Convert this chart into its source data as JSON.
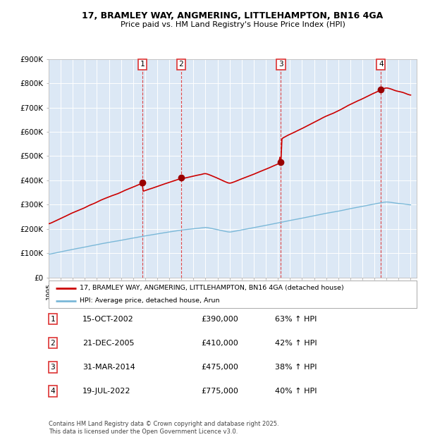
{
  "title1": "17, BRAMLEY WAY, ANGMERING, LITTLEHAMPTON, BN16 4GA",
  "title2": "Price paid vs. HM Land Registry's House Price Index (HPI)",
  "background_color": "#ffffff",
  "plot_bg_color": "#dce8f5",
  "grid_color": "#ffffff",
  "red_line_color": "#cc0000",
  "blue_line_color": "#7ab8d8",
  "sale_marker_color": "#990000",
  "vline_color": "#dd3333",
  "ylim": [
    0,
    900000
  ],
  "yticks": [
    0,
    100000,
    200000,
    300000,
    400000,
    500000,
    600000,
    700000,
    800000,
    900000
  ],
  "ytick_labels": [
    "£0",
    "£100K",
    "£200K",
    "£300K",
    "£400K",
    "£500K",
    "£600K",
    "£700K",
    "£800K",
    "£900K"
  ],
  "xlim_start": 1995,
  "xlim_end": 2025.5,
  "sales": [
    {
      "label": "1",
      "date": "15-OCT-2002",
      "year": 2002.79,
      "price": 390000,
      "pct": "63% ↑ HPI"
    },
    {
      "label": "2",
      "date": "21-DEC-2005",
      "year": 2005.97,
      "price": 410000,
      "pct": "42% ↑ HPI"
    },
    {
      "label": "3",
      "date": "31-MAR-2014",
      "year": 2014.25,
      "price": 475000,
      "pct": "38% ↑ HPI"
    },
    {
      "label": "4",
      "date": "19-JUL-2022",
      "year": 2022.54,
      "price": 775000,
      "pct": "40% ↑ HPI"
    }
  ],
  "legend_label_red": "17, BRAMLEY WAY, ANGMERING, LITTLEHAMPTON, BN16 4GA (detached house)",
  "legend_label_blue": "HPI: Average price, detached house, Arun",
  "footer": "Contains HM Land Registry data © Crown copyright and database right 2025.\nThis data is licensed under the Open Government Licence v3.0.",
  "table_rows": [
    [
      "1",
      "15-OCT-2002",
      "£390,000",
      "63% ↑ HPI"
    ],
    [
      "2",
      "21-DEC-2005",
      "£410,000",
      "42% ↑ HPI"
    ],
    [
      "3",
      "31-MAR-2014",
      "£475,000",
      "38% ↑ HPI"
    ],
    [
      "4",
      "19-JUL-2022",
      "£775,000",
      "40% ↑ HPI"
    ]
  ]
}
